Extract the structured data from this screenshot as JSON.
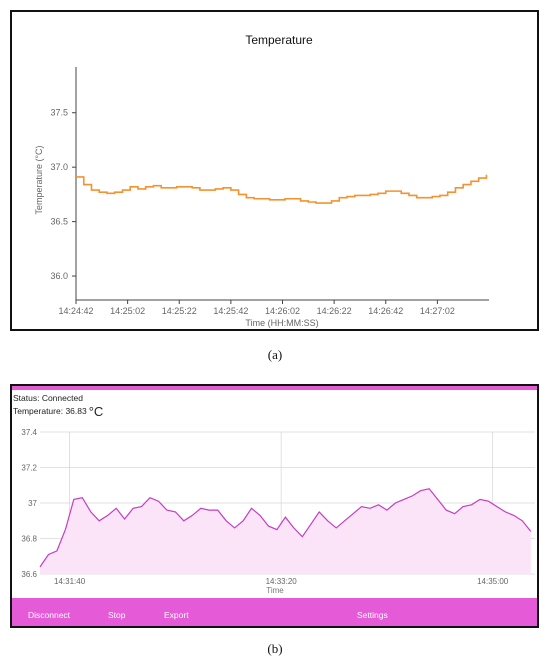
{
  "colors": {
    "line_a": "#f5922f",
    "line_b": "#c53dc3",
    "fill_b": "#fbe3f8",
    "bar_b": "#e55ad6"
  },
  "caption_a": "(a)",
  "caption_b": "(b)",
  "app": {
    "status_text": "Status: Connected",
    "temperature_label": "Temperature: 36.83",
    "temperature_unit": "°C",
    "buttons": {
      "disconnect": "Disconnect",
      "stop": "Stop",
      "export": "Export",
      "settings": "Settings"
    }
  },
  "chart_data": [
    {
      "type": "line",
      "title": "Temperature",
      "xlabel": "Time (HH:MM:SS)",
      "ylabel": "Temperature (°C)",
      "xticks": [
        "14:24:42",
        "14:25:02",
        "14:25:22",
        "14:25:42",
        "14:26:02",
        "14:26:22",
        "14:26:42",
        "14:27:02"
      ],
      "yticks": [
        36.0,
        36.5,
        37.0,
        37.5
      ],
      "xlim_seconds": [
        0,
        160
      ],
      "ylim": [
        35.78,
        37.92
      ],
      "grid": false,
      "series": [
        {
          "t_seconds": [
            0,
            3,
            6,
            9,
            12,
            15,
            18,
            21,
            24,
            27,
            30,
            33,
            36,
            39,
            42,
            45,
            48,
            51,
            54,
            57,
            60,
            63,
            66,
            69,
            72,
            75,
            78,
            81,
            84,
            87,
            90,
            93,
            96,
            99,
            102,
            105,
            108,
            111,
            114,
            117,
            120,
            123,
            126,
            129,
            132,
            135,
            138,
            141,
            144,
            147,
            150,
            153,
            156,
            159
          ],
          "values": [
            36.91,
            36.84,
            36.79,
            36.77,
            36.76,
            36.77,
            36.79,
            36.82,
            36.8,
            36.82,
            36.83,
            36.81,
            36.81,
            36.82,
            36.82,
            36.81,
            36.79,
            36.79,
            36.8,
            36.81,
            36.79,
            36.75,
            36.72,
            36.71,
            36.71,
            36.7,
            36.7,
            36.71,
            36.71,
            36.69,
            36.68,
            36.67,
            36.67,
            36.69,
            36.72,
            36.73,
            36.74,
            36.74,
            36.75,
            36.76,
            36.78,
            36.78,
            36.76,
            36.74,
            36.72,
            36.72,
            36.73,
            36.74,
            36.77,
            36.81,
            36.84,
            36.87,
            36.9,
            36.93
          ]
        }
      ]
    },
    {
      "type": "area",
      "xlabel": "Time",
      "xticks": [
        "14:31:40",
        "14:33:20",
        "14:35:00"
      ],
      "yticks": [
        36.6,
        36.8,
        37,
        37.2,
        37.4
      ],
      "xlim_seconds": [
        -14,
        220
      ],
      "ylim": [
        36.6,
        37.4
      ],
      "grid": true,
      "series": [
        {
          "t_seconds": [
            -14,
            -10,
            -6,
            -2,
            2,
            6,
            10,
            14,
            18,
            22,
            26,
            30,
            34,
            38,
            42,
            46,
            50,
            54,
            58,
            62,
            66,
            70,
            74,
            78,
            82,
            86,
            90,
            94,
            98,
            102,
            106,
            110,
            114,
            118,
            122,
            126,
            130,
            134,
            138,
            142,
            146,
            150,
            154,
            158,
            162,
            166,
            170,
            174,
            178,
            182,
            186,
            190,
            194,
            198,
            202,
            206,
            210,
            214,
            218
          ],
          "values": [
            36.64,
            36.71,
            36.73,
            36.85,
            37.02,
            37.03,
            36.95,
            36.9,
            36.93,
            36.97,
            36.91,
            36.97,
            36.98,
            37.03,
            37.01,
            36.96,
            36.95,
            36.9,
            36.93,
            36.97,
            36.96,
            36.96,
            36.9,
            36.86,
            36.9,
            36.97,
            36.93,
            36.87,
            36.85,
            36.92,
            36.86,
            36.81,
            36.88,
            36.95,
            36.9,
            36.86,
            36.9,
            36.94,
            36.98,
            36.97,
            36.99,
            36.96,
            37.0,
            37.02,
            37.04,
            37.07,
            37.08,
            37.02,
            36.96,
            36.94,
            36.98,
            36.99,
            37.02,
            37.01,
            36.98,
            36.95,
            36.93,
            36.9,
            36.84
          ]
        }
      ]
    }
  ]
}
